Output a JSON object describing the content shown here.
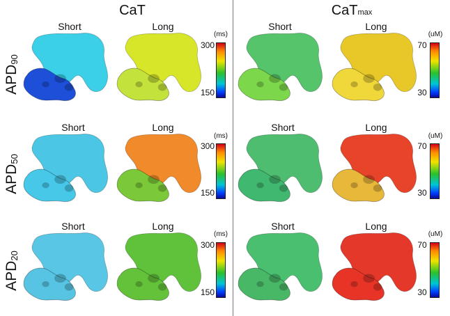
{
  "columns": {
    "left_title": "CaT",
    "right_title_base": "CaT",
    "right_title_sub": "max"
  },
  "rows": [
    {
      "base": "APD",
      "sub": "90"
    },
    {
      "base": "APD",
      "sub": "50"
    },
    {
      "base": "APD",
      "sub": "20"
    }
  ],
  "labels": {
    "short": "Short",
    "long": "Long"
  },
  "colorbars": {
    "left": {
      "unit": "(ms)",
      "max": "300",
      "min": "150"
    },
    "right": {
      "unit": "(uM)",
      "max": "70",
      "min": "30"
    }
  },
  "colors": {
    "heart_row1": [
      "#1e4fd8",
      "#3ccfe8",
      "#c4e23c",
      "#d8e62a",
      "#7cd84a",
      "#55c46a",
      "#f0d83a",
      "#e8c828"
    ],
    "heart_row2": [
      "#47c8e8",
      "#4bc6e4",
      "#7bc838",
      "#f08a2a",
      "#40b870",
      "#4fbd70",
      "#e8b83a",
      "#e8442a"
    ],
    "heart_row3": [
      "#56c4e2",
      "#58c6e4",
      "#64c23a",
      "#5fc23a",
      "#48b866",
      "#4bbf70",
      "#e83426",
      "#e4382a"
    ]
  }
}
